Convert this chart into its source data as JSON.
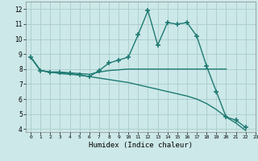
{
  "xlabel": "Humidex (Indice chaleur)",
  "xlim": [
    -0.5,
    23
  ],
  "ylim": [
    3.8,
    12.5
  ],
  "yticks": [
    4,
    5,
    6,
    7,
    8,
    9,
    10,
    11,
    12
  ],
  "xticks": [
    0,
    1,
    2,
    3,
    4,
    5,
    6,
    7,
    8,
    9,
    10,
    11,
    12,
    13,
    14,
    15,
    16,
    17,
    18,
    19,
    20,
    21,
    22,
    23
  ],
  "background_color": "#cce8e8",
  "grid_color": "#aacccc",
  "line_color": "#1e7a72",
  "lines": [
    {
      "x": [
        0,
        1,
        2,
        3,
        4,
        5,
        6,
        7,
        8,
        9,
        10,
        11,
        12,
        13,
        14,
        15,
        16,
        17,
        18,
        19,
        20,
        21,
        22
      ],
      "y": [
        8.8,
        7.9,
        7.8,
        7.8,
        7.7,
        7.6,
        7.5,
        7.9,
        8.4,
        8.6,
        8.8,
        10.3,
        11.9,
        9.6,
        11.1,
        11.0,
        11.1,
        10.2,
        8.2,
        6.5,
        4.8,
        4.6,
        4.1
      ],
      "marker": "+",
      "markersize": 4,
      "linewidth": 1.0
    },
    {
      "x": [
        0,
        1,
        2,
        3,
        4,
        5,
        6,
        7,
        8,
        9,
        10,
        11,
        12,
        13,
        14,
        15,
        16,
        17,
        18,
        19,
        20
      ],
      "y": [
        8.8,
        7.9,
        7.8,
        7.8,
        7.75,
        7.7,
        7.65,
        7.8,
        7.9,
        7.95,
        8.0,
        8.0,
        8.0,
        8.0,
        8.0,
        8.0,
        8.0,
        8.0,
        8.0,
        8.0,
        8.0
      ],
      "marker": null,
      "markersize": 0,
      "linewidth": 1.0
    },
    {
      "x": [
        0,
        1,
        2,
        3,
        4,
        5,
        6,
        7,
        8,
        9,
        10,
        11,
        12,
        13,
        14,
        15,
        16,
        17,
        18,
        19,
        20,
        21,
        22,
        23
      ],
      "y": [
        8.8,
        7.9,
        7.8,
        7.7,
        7.65,
        7.6,
        7.5,
        7.4,
        7.3,
        7.2,
        7.1,
        6.95,
        6.8,
        6.65,
        6.5,
        6.35,
        6.2,
        6.0,
        5.7,
        5.3,
        4.8,
        4.4,
        3.9,
        null
      ],
      "marker": null,
      "markersize": 0,
      "linewidth": 1.0
    }
  ]
}
